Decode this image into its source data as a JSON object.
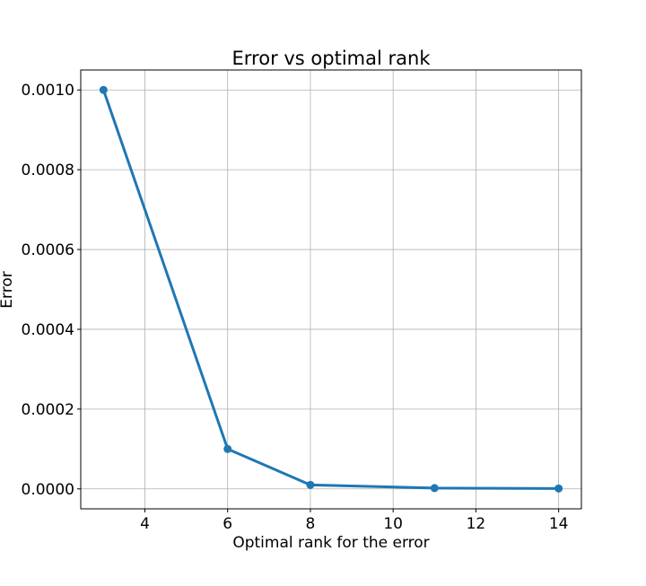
{
  "chart_data": {
    "type": "line",
    "title": "Error vs optimal rank",
    "xlabel": "Optimal rank for the error",
    "ylabel": "Error",
    "x": [
      3,
      6,
      8,
      11,
      14
    ],
    "series": [
      {
        "values": [
          0.001,
          0.0001,
          1e-05,
          2e-06,
          1e-06
        ]
      }
    ],
    "xlim": [
      2.45,
      14.55
    ],
    "ylim": [
      -5e-05,
      0.00105
    ],
    "xticks": [
      4,
      6,
      8,
      10,
      12,
      14
    ],
    "xtick_labels": [
      "4",
      "6",
      "8",
      "10",
      "12",
      "14"
    ],
    "yticks": [
      0,
      0.0002,
      0.0004,
      0.0006,
      0.0008,
      0.001
    ],
    "ytick_labels": [
      "0.0000",
      "0.0002",
      "0.0004",
      "0.0006",
      "0.0008",
      "0.0010"
    ],
    "grid": true,
    "line_color": "#1f77b4",
    "markers": "circle"
  }
}
